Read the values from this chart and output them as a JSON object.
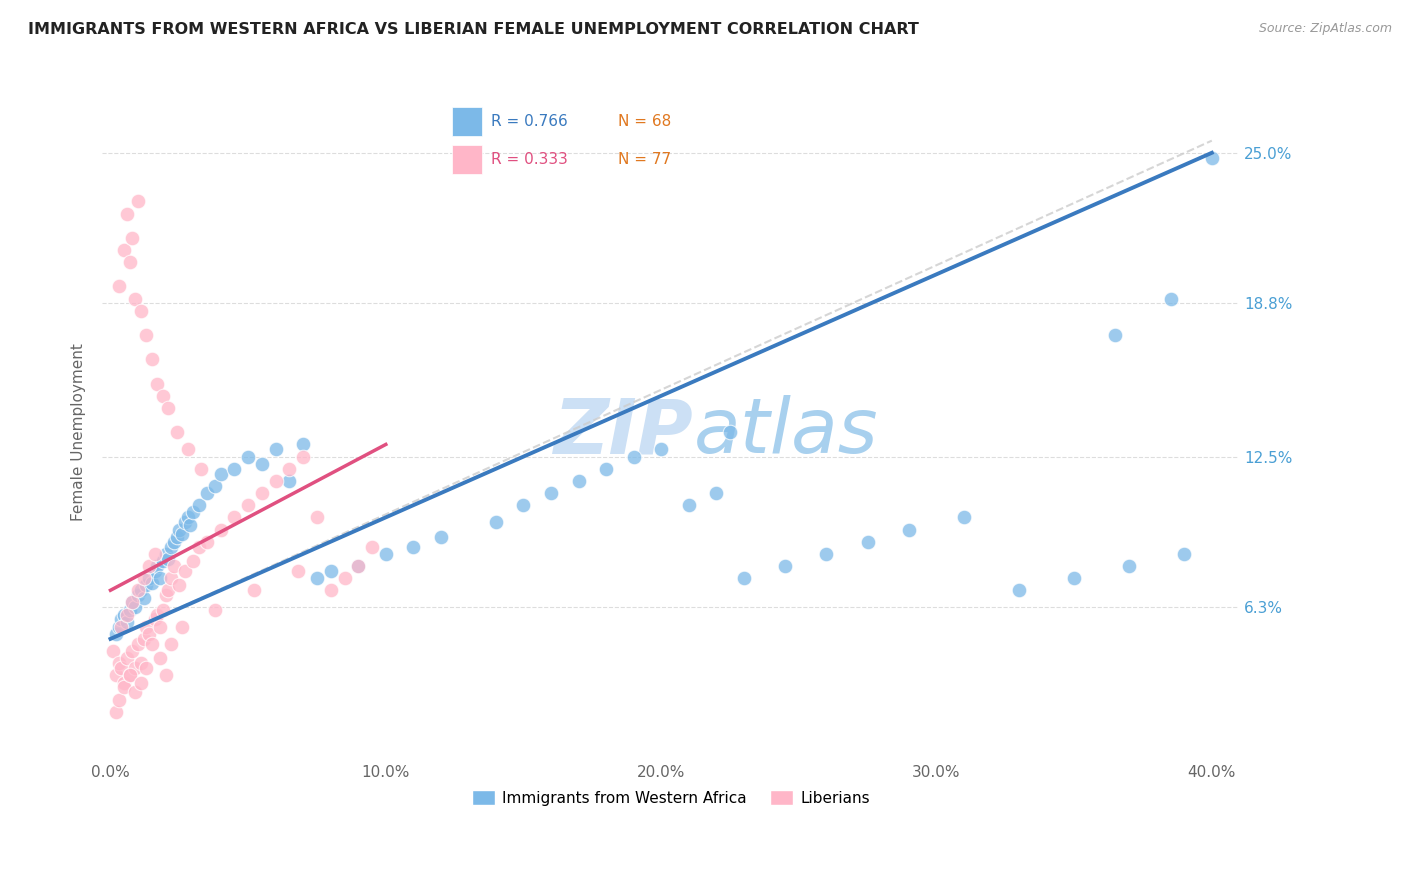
{
  "title": "IMMIGRANTS FROM WESTERN AFRICA VS LIBERIAN FEMALE UNEMPLOYMENT CORRELATION CHART",
  "source": "Source: ZipAtlas.com",
  "xlabel_vals": [
    0.0,
    10.0,
    20.0,
    30.0,
    40.0
  ],
  "ylabel_vals": [
    6.3,
    12.5,
    18.8,
    25.0
  ],
  "ylabel_label": "Female Unemployment",
  "legend_blue_R": "R = 0.766",
  "legend_blue_N": "N = 68",
  "legend_pink_R": "R = 0.333",
  "legend_pink_N": "N = 77",
  "legend_label_blue": "Immigrants from Western Africa",
  "legend_label_pink": "Liberians",
  "color_blue": "#7cb9e8",
  "color_pink": "#ffb6c8",
  "color_blue_line": "#3a7abf",
  "color_pink_line": "#e05080",
  "color_dashed": "#cccccc",
  "watermark_color": "#cce0f5",
  "axis_tick_color": "#4a9fd4",
  "title_fontsize": 11.5,
  "blue_points_x": [
    0.2,
    0.3,
    0.4,
    0.5,
    0.6,
    0.7,
    0.8,
    0.9,
    1.0,
    1.1,
    1.2,
    1.3,
    1.4,
    1.5,
    1.6,
    1.7,
    1.8,
    1.9,
    2.0,
    2.1,
    2.2,
    2.3,
    2.4,
    2.5,
    2.6,
    2.7,
    2.8,
    2.9,
    3.0,
    3.2,
    3.5,
    3.8,
    4.0,
    4.5,
    5.0,
    5.5,
    6.0,
    6.5,
    7.0,
    7.5,
    8.0,
    9.0,
    10.0,
    11.0,
    12.0,
    14.0,
    15.0,
    16.0,
    17.0,
    18.0,
    19.0,
    20.0,
    21.0,
    22.0,
    23.0,
    24.5,
    26.0,
    27.5,
    29.0,
    31.0,
    33.0,
    35.0,
    37.0,
    39.0,
    40.0,
    22.5,
    36.5,
    38.5
  ],
  "blue_points_y": [
    5.2,
    5.5,
    5.8,
    6.0,
    5.7,
    6.2,
    6.5,
    6.3,
    6.8,
    7.0,
    6.7,
    7.2,
    7.5,
    7.3,
    7.8,
    8.0,
    7.5,
    8.2,
    8.5,
    8.3,
    8.8,
    9.0,
    9.2,
    9.5,
    9.3,
    9.8,
    10.0,
    9.7,
    10.2,
    10.5,
    11.0,
    11.3,
    11.8,
    12.0,
    12.5,
    12.2,
    12.8,
    11.5,
    13.0,
    7.5,
    7.8,
    8.0,
    8.5,
    8.8,
    9.2,
    9.8,
    10.5,
    11.0,
    11.5,
    12.0,
    12.5,
    12.8,
    10.5,
    11.0,
    7.5,
    8.0,
    8.5,
    9.0,
    9.5,
    10.0,
    7.0,
    7.5,
    8.0,
    8.5,
    24.8,
    13.5,
    17.5,
    19.0
  ],
  "pink_points_x": [
    0.1,
    0.2,
    0.3,
    0.4,
    0.5,
    0.6,
    0.7,
    0.8,
    0.9,
    1.0,
    1.1,
    1.2,
    1.3,
    1.4,
    1.5,
    1.6,
    1.7,
    1.8,
    1.9,
    2.0,
    2.1,
    2.2,
    2.3,
    2.5,
    2.7,
    3.0,
    3.2,
    3.5,
    4.0,
    4.5,
    5.0,
    5.5,
    6.0,
    6.5,
    7.0,
    7.5,
    8.0,
    8.5,
    9.0,
    9.5,
    0.3,
    0.5,
    0.7,
    0.9,
    1.1,
    1.3,
    1.5,
    1.7,
    1.9,
    2.1,
    2.4,
    2.8,
    3.3,
    0.4,
    0.6,
    0.8,
    1.0,
    1.2,
    1.4,
    1.6,
    0.2,
    0.3,
    0.5,
    0.7,
    0.9,
    1.1,
    1.3,
    1.8,
    2.2,
    2.6,
    3.8,
    5.2,
    6.8,
    0.6,
    0.8,
    1.0,
    2.0
  ],
  "pink_points_y": [
    4.5,
    3.5,
    4.0,
    3.8,
    3.2,
    4.2,
    3.5,
    4.5,
    3.8,
    4.8,
    4.0,
    5.0,
    5.5,
    5.2,
    4.8,
    5.8,
    6.0,
    5.5,
    6.2,
    6.8,
    7.0,
    7.5,
    8.0,
    7.2,
    7.8,
    8.2,
    8.8,
    9.0,
    9.5,
    10.0,
    10.5,
    11.0,
    11.5,
    12.0,
    12.5,
    10.0,
    7.0,
    7.5,
    8.0,
    8.8,
    19.5,
    21.0,
    20.5,
    19.0,
    18.5,
    17.5,
    16.5,
    15.5,
    15.0,
    14.5,
    13.5,
    12.8,
    12.0,
    5.5,
    6.0,
    6.5,
    7.0,
    7.5,
    8.0,
    8.5,
    2.0,
    2.5,
    3.0,
    3.5,
    2.8,
    3.2,
    3.8,
    4.2,
    4.8,
    5.5,
    6.2,
    7.0,
    7.8,
    22.5,
    21.5,
    23.0,
    3.5
  ]
}
